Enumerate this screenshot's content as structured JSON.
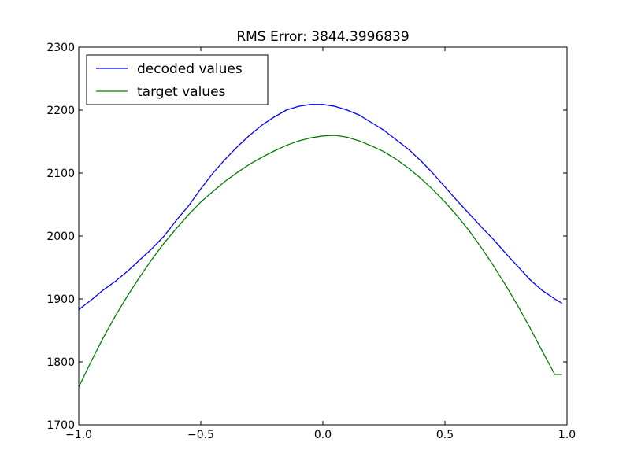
{
  "chart_data": {
    "type": "line",
    "title": "RMS Error: 3844.3996839",
    "xlabel": "",
    "ylabel": "",
    "xlim": [
      -1.0,
      1.0
    ],
    "ylim": [
      1700,
      2300
    ],
    "xticks": [
      -1.0,
      -0.5,
      0.0,
      0.5,
      1.0
    ],
    "xtick_labels": [
      "−1.0",
      "−0.5",
      "0.0",
      "0.5",
      "1.0"
    ],
    "yticks": [
      1700,
      1800,
      1900,
      2000,
      2100,
      2200,
      2300
    ],
    "ytick_labels": [
      "1700",
      "1800",
      "1900",
      "2000",
      "2100",
      "2200",
      "2300"
    ],
    "grid": false,
    "legend_placement": "top-left",
    "series": [
      {
        "name": "decoded values",
        "color": "#0000ff",
        "x": [
          -1.0,
          -0.95,
          -0.9,
          -0.85,
          -0.8,
          -0.75,
          -0.7,
          -0.65,
          -0.6,
          -0.55,
          -0.5,
          -0.45,
          -0.4,
          -0.35,
          -0.3,
          -0.25,
          -0.2,
          -0.15,
          -0.1,
          -0.05,
          0.0,
          0.05,
          0.1,
          0.15,
          0.2,
          0.25,
          0.3,
          0.35,
          0.4,
          0.45,
          0.5,
          0.55,
          0.6,
          0.65,
          0.7,
          0.75,
          0.8,
          0.85,
          0.9,
          0.95,
          0.98
        ],
        "y": [
          1883,
          1898,
          1914,
          1928,
          1944,
          1962,
          1980,
          2000,
          2025,
          2048,
          2075,
          2100,
          2122,
          2142,
          2160,
          2176,
          2189,
          2200,
          2206,
          2209,
          2209,
          2206,
          2200,
          2192,
          2180,
          2168,
          2153,
          2138,
          2120,
          2100,
          2078,
          2056,
          2035,
          2014,
          1994,
          1972,
          1951,
          1930,
          1913,
          1900,
          1893
        ]
      },
      {
        "name": "target values",
        "color": "#008000",
        "x": [
          -1.0,
          -0.95,
          -0.9,
          -0.85,
          -0.8,
          -0.75,
          -0.7,
          -0.65,
          -0.6,
          -0.55,
          -0.5,
          -0.45,
          -0.4,
          -0.35,
          -0.3,
          -0.25,
          -0.2,
          -0.15,
          -0.1,
          -0.05,
          0.0,
          0.05,
          0.1,
          0.15,
          0.2,
          0.25,
          0.3,
          0.35,
          0.4,
          0.45,
          0.5,
          0.55,
          0.6,
          0.65,
          0.7,
          0.75,
          0.8,
          0.85,
          0.9,
          0.95,
          0.98
        ],
        "y": [
          1760,
          1800,
          1838,
          1873,
          1905,
          1935,
          1963,
          1989,
          2012,
          2034,
          2054,
          2071,
          2087,
          2101,
          2114,
          2125,
          2135,
          2144,
          2151,
          2156,
          2159,
          2160,
          2157,
          2151,
          2143,
          2134,
          2122,
          2108,
          2092,
          2074,
          2054,
          2032,
          2008,
          1981,
          1952,
          1921,
          1888,
          1853,
          1816,
          1780,
          1780
        ]
      }
    ]
  }
}
